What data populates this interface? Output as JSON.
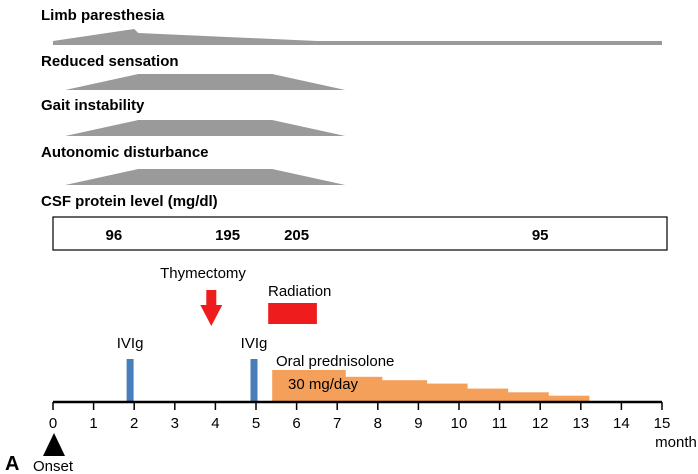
{
  "colors": {
    "symptom": "#9a9a9a",
    "ivig": "#4a7ebb",
    "prednisolone": "#f5a05a",
    "event_red": "#ee1c1c",
    "axis": "#000000"
  },
  "panel_label": "A",
  "symptoms": [
    {
      "label": "Limb paresthesia",
      "profile": [
        [
          0,
          0
        ],
        [
          2,
          1
        ],
        [
          2.1,
          0.75
        ],
        [
          6.5,
          0
        ],
        [
          15,
          0
        ]
      ],
      "baseline": 0.25
    },
    {
      "label": "Reduced sensation",
      "profile": [
        [
          0.3,
          0
        ],
        [
          2.1,
          1
        ],
        [
          5.4,
          1
        ],
        [
          7.2,
          0
        ]
      ]
    },
    {
      "label": "Gait instability",
      "profile": [
        [
          0.3,
          0
        ],
        [
          2.1,
          1
        ],
        [
          5.4,
          1
        ],
        [
          7.2,
          0
        ]
      ]
    },
    {
      "label": "Autonomic disturbance",
      "profile": [
        [
          0.3,
          0
        ],
        [
          2.1,
          1
        ],
        [
          5.4,
          1
        ],
        [
          7.2,
          0
        ]
      ]
    }
  ],
  "csf": {
    "title": "CSF protein level (mg/dl)",
    "values": [
      {
        "text": "96",
        "month": 1.5
      },
      {
        "text": "195",
        "month": 4.3
      },
      {
        "text": "205",
        "month": 6.0
      },
      {
        "text": "95",
        "month": 12.0
      }
    ]
  },
  "events": {
    "thymectomy": {
      "label": "Thymectomy",
      "month": 3.9
    },
    "radiation": {
      "label": "Radiation",
      "start": 5.3,
      "end": 6.5
    },
    "ivig": [
      {
        "label": "IVIg",
        "month": 1.9
      },
      {
        "label": "IVIg",
        "month": 4.95
      }
    ],
    "prednisolone": {
      "label": "Oral prednisolone",
      "dose_label": "30 mg/day",
      "steps": [
        {
          "start": 5.4,
          "end": 7.2,
          "level": 1.0
        },
        {
          "start": 7.2,
          "end": 8.1,
          "level": 0.78
        },
        {
          "start": 8.1,
          "end": 9.2,
          "level": 0.67
        },
        {
          "start": 9.2,
          "end": 10.2,
          "level": 0.56
        },
        {
          "start": 10.2,
          "end": 11.2,
          "level": 0.4
        },
        {
          "start": 11.2,
          "end": 12.2,
          "level": 0.28
        },
        {
          "start": 12.2,
          "end": 13.2,
          "level": 0.17
        }
      ]
    }
  },
  "axis": {
    "min": 0,
    "max": 15,
    "ticks": [
      "0",
      "1",
      "2",
      "3",
      "4",
      "5",
      "6",
      "7",
      "8",
      "9",
      "10",
      "11",
      "12",
      "13",
      "14",
      "15"
    ],
    "unit": "month",
    "onset_label": "Onset"
  }
}
